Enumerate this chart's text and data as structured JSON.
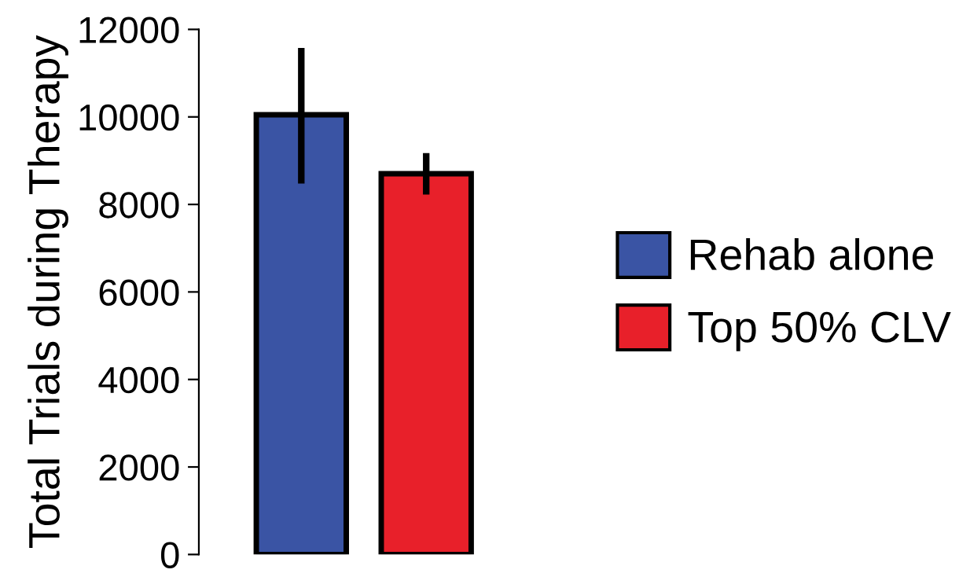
{
  "chart_data": {
    "type": "bar",
    "ylabel": "Total Trials during Therapy",
    "categories": [
      null
    ],
    "series": [
      {
        "name": "Rehab alone",
        "color": "#3a54a4",
        "values": [
          10050
        ],
        "errors": [
          [
            8550,
            11500
          ]
        ]
      },
      {
        "name": "Top 50% CLV",
        "color": "#e8202a",
        "values": [
          8700
        ],
        "errors": [
          [
            8300,
            9100
          ]
        ]
      }
    ],
    "ylim": [
      0,
      12000
    ],
    "yticks": [
      0,
      2000,
      4000,
      6000,
      8000,
      10000,
      12000
    ],
    "grid": false,
    "legend": "right"
  }
}
